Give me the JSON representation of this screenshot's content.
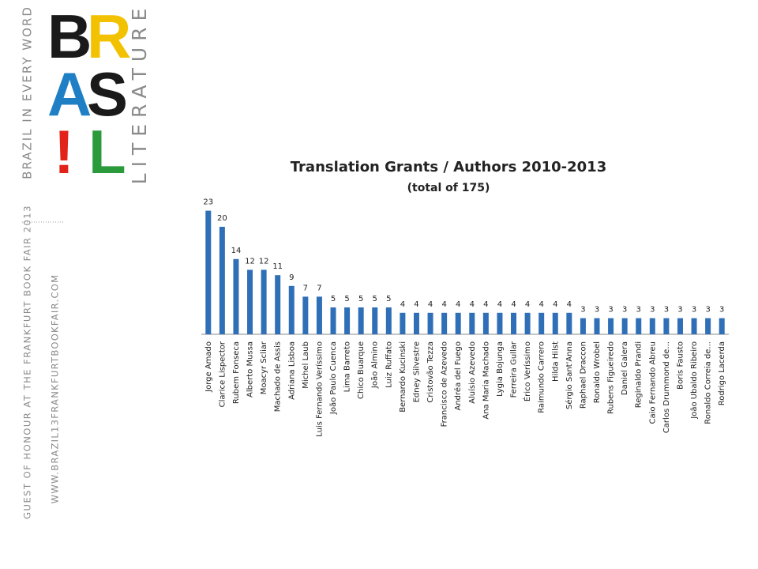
{
  "brand": {
    "tagline": "BRAZIL IN EVERY WORD",
    "letters": [
      "B",
      "R",
      "A",
      "S",
      "!",
      "L"
    ],
    "word": "LITERATURE",
    "guest": "GUEST OF HONOUR AT THE FRANKFURT BOOK FAIR 2013",
    "url": "WWW.BRAZIL13FRANKFURTBOOKFAIR.COM"
  },
  "chart_data": {
    "type": "bar",
    "title": "Translation Grants / Authors 2010-2013",
    "subtitle": "(total of 175)",
    "color": "#2f6fb7",
    "categories": [
      "Jorge Amado",
      "Clarice Lispector",
      "Rubem Fonseca",
      "Alberto Mussa",
      "Moacyr Scliar",
      "Machado de Assis",
      "Adriana Lisboa",
      "Michel Laub",
      "Luis Fernando Veríssimo",
      "João Paulo Cuenca",
      "Lima Barreto",
      "Chico Buarque",
      "João Almino",
      "Luiz Ruffato",
      "Bernardo Kucinski",
      "Edney Silvestre",
      "Cristovão Tezza",
      "Francisco de Azevedo",
      "Andréa del Fuego",
      "Aluísio Azevedo",
      "Ana Maria Machado",
      "Lygia Bojunga",
      "Ferreira Gullar",
      "Érico Veríssimo",
      "Raimundo Carrero",
      "Hilda Hilst",
      "Sérgio Sant'Anna",
      "Raphael Draccon",
      "Ronaldo Wrobel",
      "Rubens Figueiredo",
      "Daniel Galera",
      "Reginaldo Prandi",
      "Caio Fernando Abreu",
      "Carlos Drummond de...",
      "Boris Fausto",
      "João Ubaldo Ribeiro",
      "Ronaldo Correia de...",
      "Rodrigo Lacerda"
    ],
    "values": [
      23,
      20,
      14,
      12,
      12,
      11,
      9,
      7,
      7,
      5,
      5,
      5,
      5,
      5,
      4,
      4,
      4,
      4,
      4,
      4,
      4,
      4,
      4,
      4,
      4,
      4,
      4,
      3,
      3,
      3,
      3,
      3,
      3,
      3,
      3,
      3,
      3,
      3
    ]
  }
}
